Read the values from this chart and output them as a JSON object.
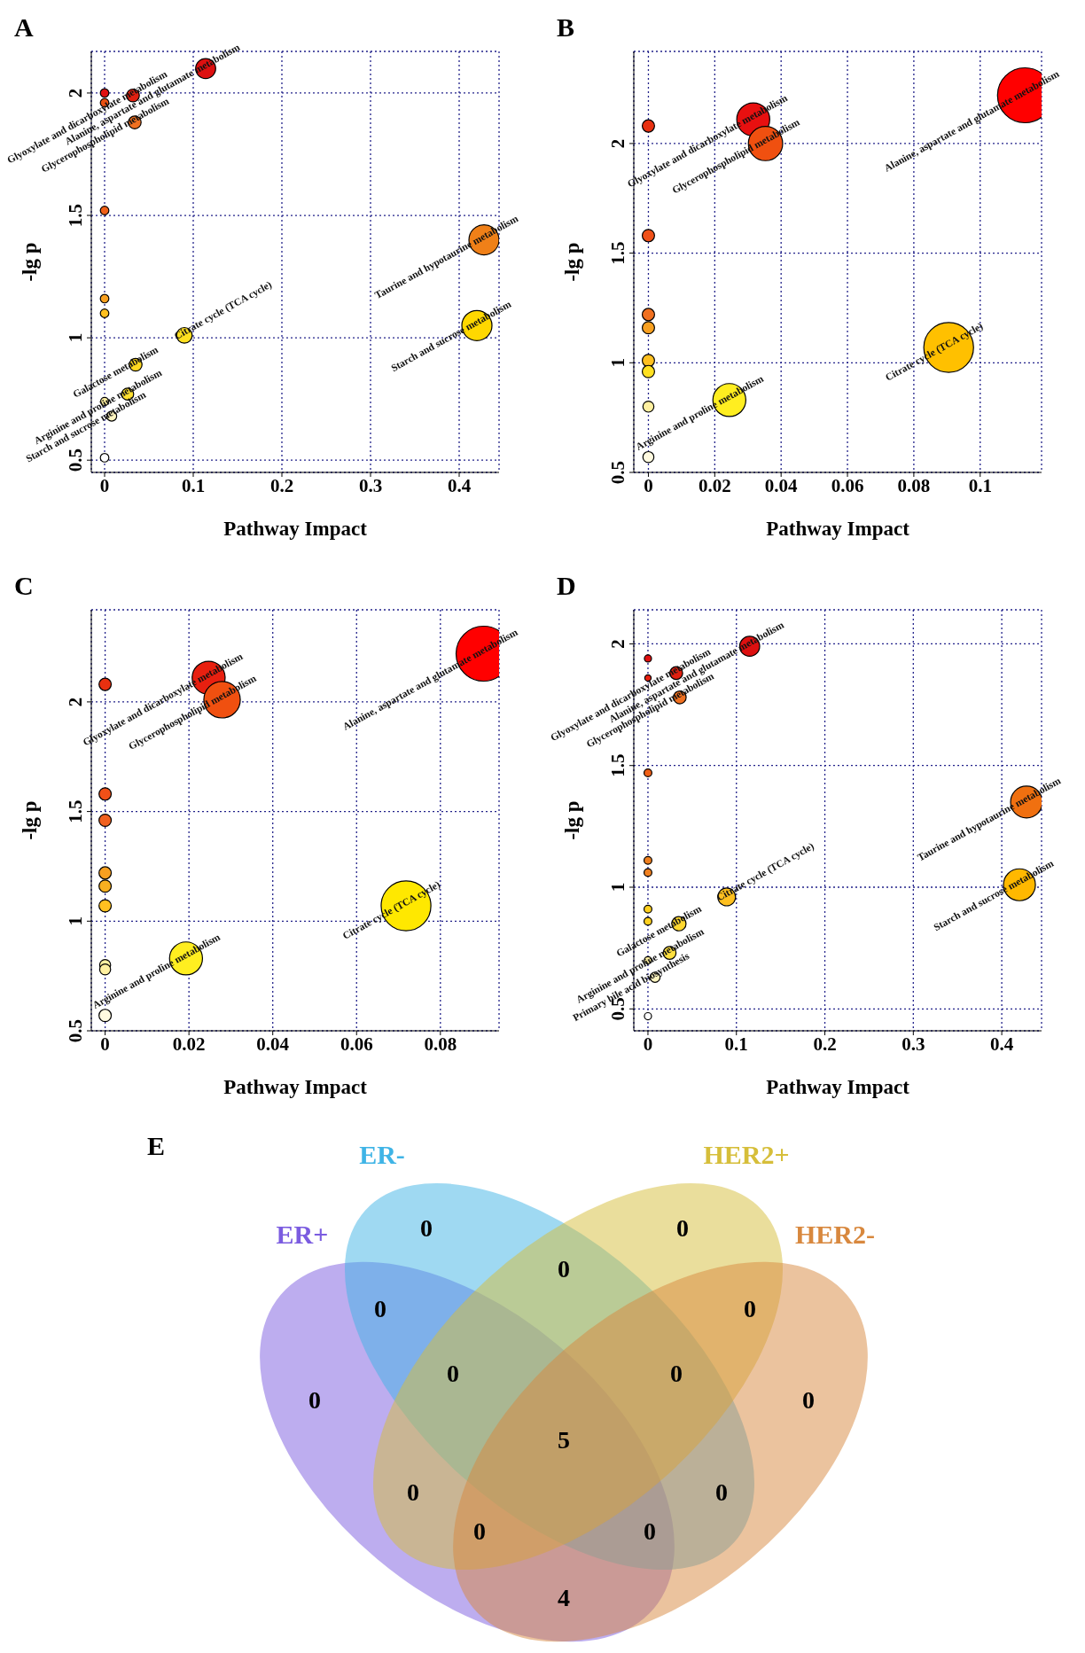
{
  "chart_data": [
    {
      "type": "bubble",
      "title": "A",
      "xlabel": "Pathway Impact",
      "ylabel": "-lg p",
      "xlim": [
        -0.015,
        0.445
      ],
      "ylim": [
        0.45,
        2.17
      ],
      "xticks": [
        0,
        0.1,
        0.2,
        0.3,
        0.4
      ],
      "yticks": [
        0.5,
        1,
        1.5,
        2
      ],
      "grid": true,
      "marker": "circle",
      "x": [
        0,
        0,
        0.032,
        0.114,
        0.034,
        0,
        0,
        0,
        0.09,
        0.035,
        0,
        0.026,
        0.008,
        0,
        0.428,
        0.42
      ],
      "values": [
        2.0,
        1.96,
        1.99,
        2.1,
        1.88,
        1.52,
        1.16,
        1.1,
        1.01,
        0.89,
        0.74,
        0.77,
        0.68,
        0.51,
        1.4,
        1.05
      ],
      "sizes": [
        0.08,
        0.08,
        0.18,
        0.44,
        0.18,
        0.08,
        0.08,
        0.08,
        0.27,
        0.18,
        0.07,
        0.16,
        0.11,
        0.08,
        1,
        1
      ],
      "colors": [
        "#e01010",
        "#e85010",
        "#e02010",
        "#dd1010",
        "#f07020",
        "#f06018",
        "#f8a020",
        "#ffc020",
        "#ffe020",
        "#ffd820",
        "#fff0a0",
        "#ffe030",
        "#fff5c0",
        "#ffffff",
        "#f08018",
        "#ffd800"
      ],
      "annotations": [
        {
          "text": "Glyoxylate and dicarboxylate metabolism",
          "x": 0.032,
          "y": 1.99
        },
        {
          "text": "Alanine, aspartate and glutamate metabolism",
          "x": 0.114,
          "y": 2.1
        },
        {
          "text": "Glycerophospholipid metabolism",
          "x": 0.034,
          "y": 1.88
        },
        {
          "text": "Citrate cycle (TCA cycle)",
          "x": 0.09,
          "y": 1.01
        },
        {
          "text": "Galactose metabolism",
          "x": 0.035,
          "y": 0.89
        },
        {
          "text": "Arginine and proline metabolism",
          "x": 0.026,
          "y": 0.77
        },
        {
          "text": "Starch and sucrose metabolism",
          "x": 0.008,
          "y": 0.68
        },
        {
          "text": "Taurine and hypotaurine metabolism",
          "x": 0.428,
          "y": 1.4
        },
        {
          "text": "Starch and sucrose metabolism",
          "x": 0.42,
          "y": 1.05
        }
      ]
    },
    {
      "type": "bubble",
      "title": "B",
      "xlabel": "Pathway Impact",
      "ylabel": "-lg p",
      "xlim": [
        -0.0044,
        0.1185
      ],
      "ylim": [
        0.5,
        2.42
      ],
      "xticks": [
        0,
        0.02,
        0.04,
        0.06,
        0.08,
        0.1
      ],
      "yticks": [
        0.5,
        1,
        1.5,
        2
      ],
      "grid": true,
      "marker": "circle",
      "x": [
        0,
        0.0316,
        0.0353,
        0.1135,
        0,
        0,
        0,
        0,
        0,
        0.0244,
        0.0905,
        0,
        0
      ],
      "values": [
        2.08,
        2.11,
        2.0,
        2.22,
        1.58,
        1.22,
        1.16,
        1.01,
        0.96,
        0.83,
        1.07,
        0.8,
        0.57
      ],
      "sizes": [
        0.05,
        0.36,
        0.39,
        1,
        0.05,
        0.05,
        0.05,
        0.05,
        0.05,
        0.36,
        0.82,
        0.04,
        0.04
      ],
      "colors": [
        "#e83010",
        "#e81010",
        "#f05010",
        "#ff0000",
        "#f05018",
        "#f07020",
        "#f8a020",
        "#ffc020",
        "#ffe020",
        "#ffee20",
        "#ffc000",
        "#fff0a0",
        "#fffae0"
      ],
      "annotations": [
        {
          "text": "Glyoxylate and dicarboxylate metabolism",
          "x": 0.0316,
          "y": 2.11
        },
        {
          "text": "Glycerophospholipid metabolism",
          "x": 0.0353,
          "y": 2.0
        },
        {
          "text": "Alanine, aspartate and glutamate metabolism",
          "x": 0.1135,
          "y": 2.22
        },
        {
          "text": "Arginine and proline metabolism",
          "x": 0.0244,
          "y": 0.83
        },
        {
          "text": "Citrate cycle (TCA cycle)",
          "x": 0.0905,
          "y": 1.07
        }
      ]
    },
    {
      "type": "bubble",
      "title": "C",
      "xlabel": "Pathway Impact",
      "ylabel": "-lg p",
      "xlim": [
        -0.0033,
        0.094
      ],
      "ylim": [
        0.5,
        2.42
      ],
      "xticks": [
        0,
        0.02,
        0.04,
        0.06,
        0.08
      ],
      "yticks": [
        0.5,
        1,
        1.5,
        2
      ],
      "grid": true,
      "marker": "circle",
      "x": [
        0,
        0.0247,
        0.0279,
        0.0903,
        0,
        0,
        0,
        0,
        0,
        0,
        0,
        0.0193,
        0.0718,
        0
      ],
      "values": [
        2.08,
        2.11,
        2.01,
        2.22,
        1.58,
        1.46,
        1.22,
        1.16,
        1.07,
        0.8,
        0.78,
        0.83,
        1.07,
        0.57
      ],
      "sizes": [
        0.05,
        0.36,
        0.44,
        1,
        0.05,
        0.05,
        0.05,
        0.05,
        0.05,
        0.04,
        0.04,
        0.36,
        0.82,
        0.05
      ],
      "colors": [
        "#e83010",
        "#e82010",
        "#f05010",
        "#ff0000",
        "#f05018",
        "#f06020",
        "#f8a020",
        "#f8b020",
        "#ffc020",
        "#fff0a0",
        "#fff0a0",
        "#ffee20",
        "#ffe800",
        "#fffae0"
      ],
      "annotations": [
        {
          "text": "Glyoxylate and dicarboxylate metabolism",
          "x": 0.0247,
          "y": 2.11
        },
        {
          "text": "Glycerophospholipid metabolism",
          "x": 0.0279,
          "y": 2.01
        },
        {
          "text": "Alanine, aspartate and glutamate metabolism",
          "x": 0.0903,
          "y": 2.22
        },
        {
          "text": "Arginine and proline metabolism",
          "x": 0.0193,
          "y": 0.83
        },
        {
          "text": "Citrate cycle (TCA cycle)",
          "x": 0.0718,
          "y": 1.07
        }
      ]
    },
    {
      "type": "bubble",
      "title": "D",
      "xlabel": "Pathway Impact",
      "ylabel": "-lg p",
      "xlim": [
        -0.016,
        0.445
      ],
      "ylim": [
        0.41,
        2.14
      ],
      "xticks": [
        0,
        0.1,
        0.2,
        0.3,
        0.4
      ],
      "yticks": [
        0.5,
        1,
        1.5,
        2
      ],
      "grid": true,
      "marker": "circle",
      "x": [
        0,
        0,
        0.032,
        0.115,
        0.036,
        0,
        0,
        0,
        0,
        0,
        0.089,
        0.035,
        0.0245,
        0,
        0.008,
        0,
        0.428,
        0.42
      ],
      "values": [
        1.94,
        1.86,
        1.88,
        1.99,
        1.78,
        1.47,
        1.11,
        1.06,
        0.91,
        0.86,
        0.96,
        0.85,
        0.73,
        0.7,
        0.63,
        0.47,
        1.35,
        1.01
      ],
      "sizes": [
        0.05,
        0.04,
        0.16,
        0.39,
        0.16,
        0.06,
        0.06,
        0.06,
        0.06,
        0.06,
        0.31,
        0.2,
        0.16,
        0.05,
        0.1,
        0.05,
        1,
        1
      ],
      "colors": [
        "#e01010",
        "#e82010",
        "#e02010",
        "#dd1010",
        "#f07020",
        "#f06018",
        "#f08020",
        "#f08020",
        "#ffd020",
        "#ffd020",
        "#ffc020",
        "#ffd830",
        "#ffe040",
        "#fff0a0",
        "#fff5c0",
        "#ffffff",
        "#f07010",
        "#ffb800"
      ],
      "annotations": [
        {
          "text": "Glyoxylate and dicarboxylate metabolism",
          "x": 0.032,
          "y": 1.88
        },
        {
          "text": "Alanine, aspartate and glutamate metabolism",
          "x": 0.115,
          "y": 1.99
        },
        {
          "text": "Glycerophospholipid metabolism",
          "x": 0.036,
          "y": 1.78
        },
        {
          "text": "Citrate cycle (TCA cycle)",
          "x": 0.089,
          "y": 0.96
        },
        {
          "text": "Galactose metabolism",
          "x": 0.035,
          "y": 0.85
        },
        {
          "text": "Arginine and proline metabolism",
          "x": 0.0245,
          "y": 0.73
        },
        {
          "text": "Primary bile acid biosynthesis",
          "x": 0.008,
          "y": 0.63
        },
        {
          "text": "Taurine and hypotaurine metabolism",
          "x": 0.428,
          "y": 1.35
        },
        {
          "text": "Starch and sucrose metabolism",
          "x": 0.42,
          "y": 1.01
        }
      ]
    },
    {
      "type": "other",
      "title": "E",
      "categories": [
        "ER+",
        "ER-",
        "HER2+",
        "HER2-"
      ],
      "colors": [
        "#7b5ce0",
        "#3fb4e6",
        "#d6be3a",
        "#d8883e"
      ],
      "annotations": [
        "0",
        "0",
        "0",
        "0",
        "0",
        "0",
        "0",
        "0",
        "0",
        "5",
        "0",
        "0",
        "0",
        "0",
        "4"
      ]
    }
  ]
}
